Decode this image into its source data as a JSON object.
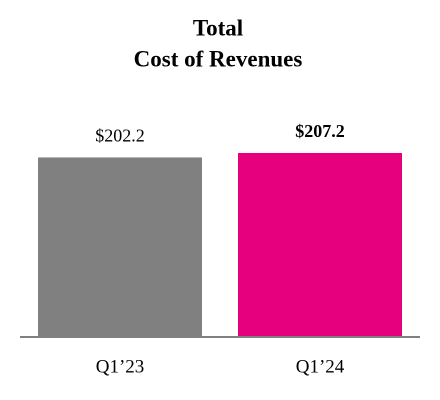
{
  "chart_data": {
    "type": "bar",
    "title": [
      "Total",
      "Cost of Revenues"
    ],
    "categories": [
      "Q1’23",
      "Q1’24"
    ],
    "values": [
      202.2,
      207.2
    ],
    "value_labels": [
      "$202.2",
      "$207.2"
    ],
    "value_label_bold": [
      false,
      true
    ],
    "colors": [
      "#808080",
      "#e6007e"
    ]
  }
}
